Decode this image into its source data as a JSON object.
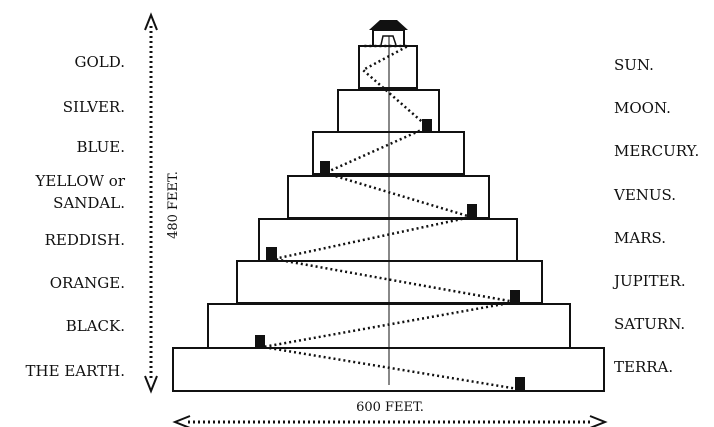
{
  "diagram": {
    "title": "",
    "levels": [
      {
        "left_label": "GOLD.",
        "right_label": "SUN."
      },
      {
        "left_label": "SILVER.",
        "right_label": "MOON."
      },
      {
        "left_label": "BLUE.",
        "right_label": "MERCURY."
      },
      {
        "left_label": "YELLOW or",
        "left_label_line2": "SANDAL.",
        "right_label": "VENUS."
      },
      {
        "left_label": "REDDISH.",
        "right_label": "MARS."
      },
      {
        "left_label": "ORANGE.",
        "right_label": "JUPITER."
      },
      {
        "left_label": "BLACK.",
        "right_label": "SATURN."
      },
      {
        "left_label": "THE EARTH.",
        "right_label": "TERRA."
      }
    ],
    "height_label": "480 FEET.",
    "width_label": "600 FEET.",
    "colors": {
      "line": "#111111",
      "background": "#ffffff"
    }
  }
}
